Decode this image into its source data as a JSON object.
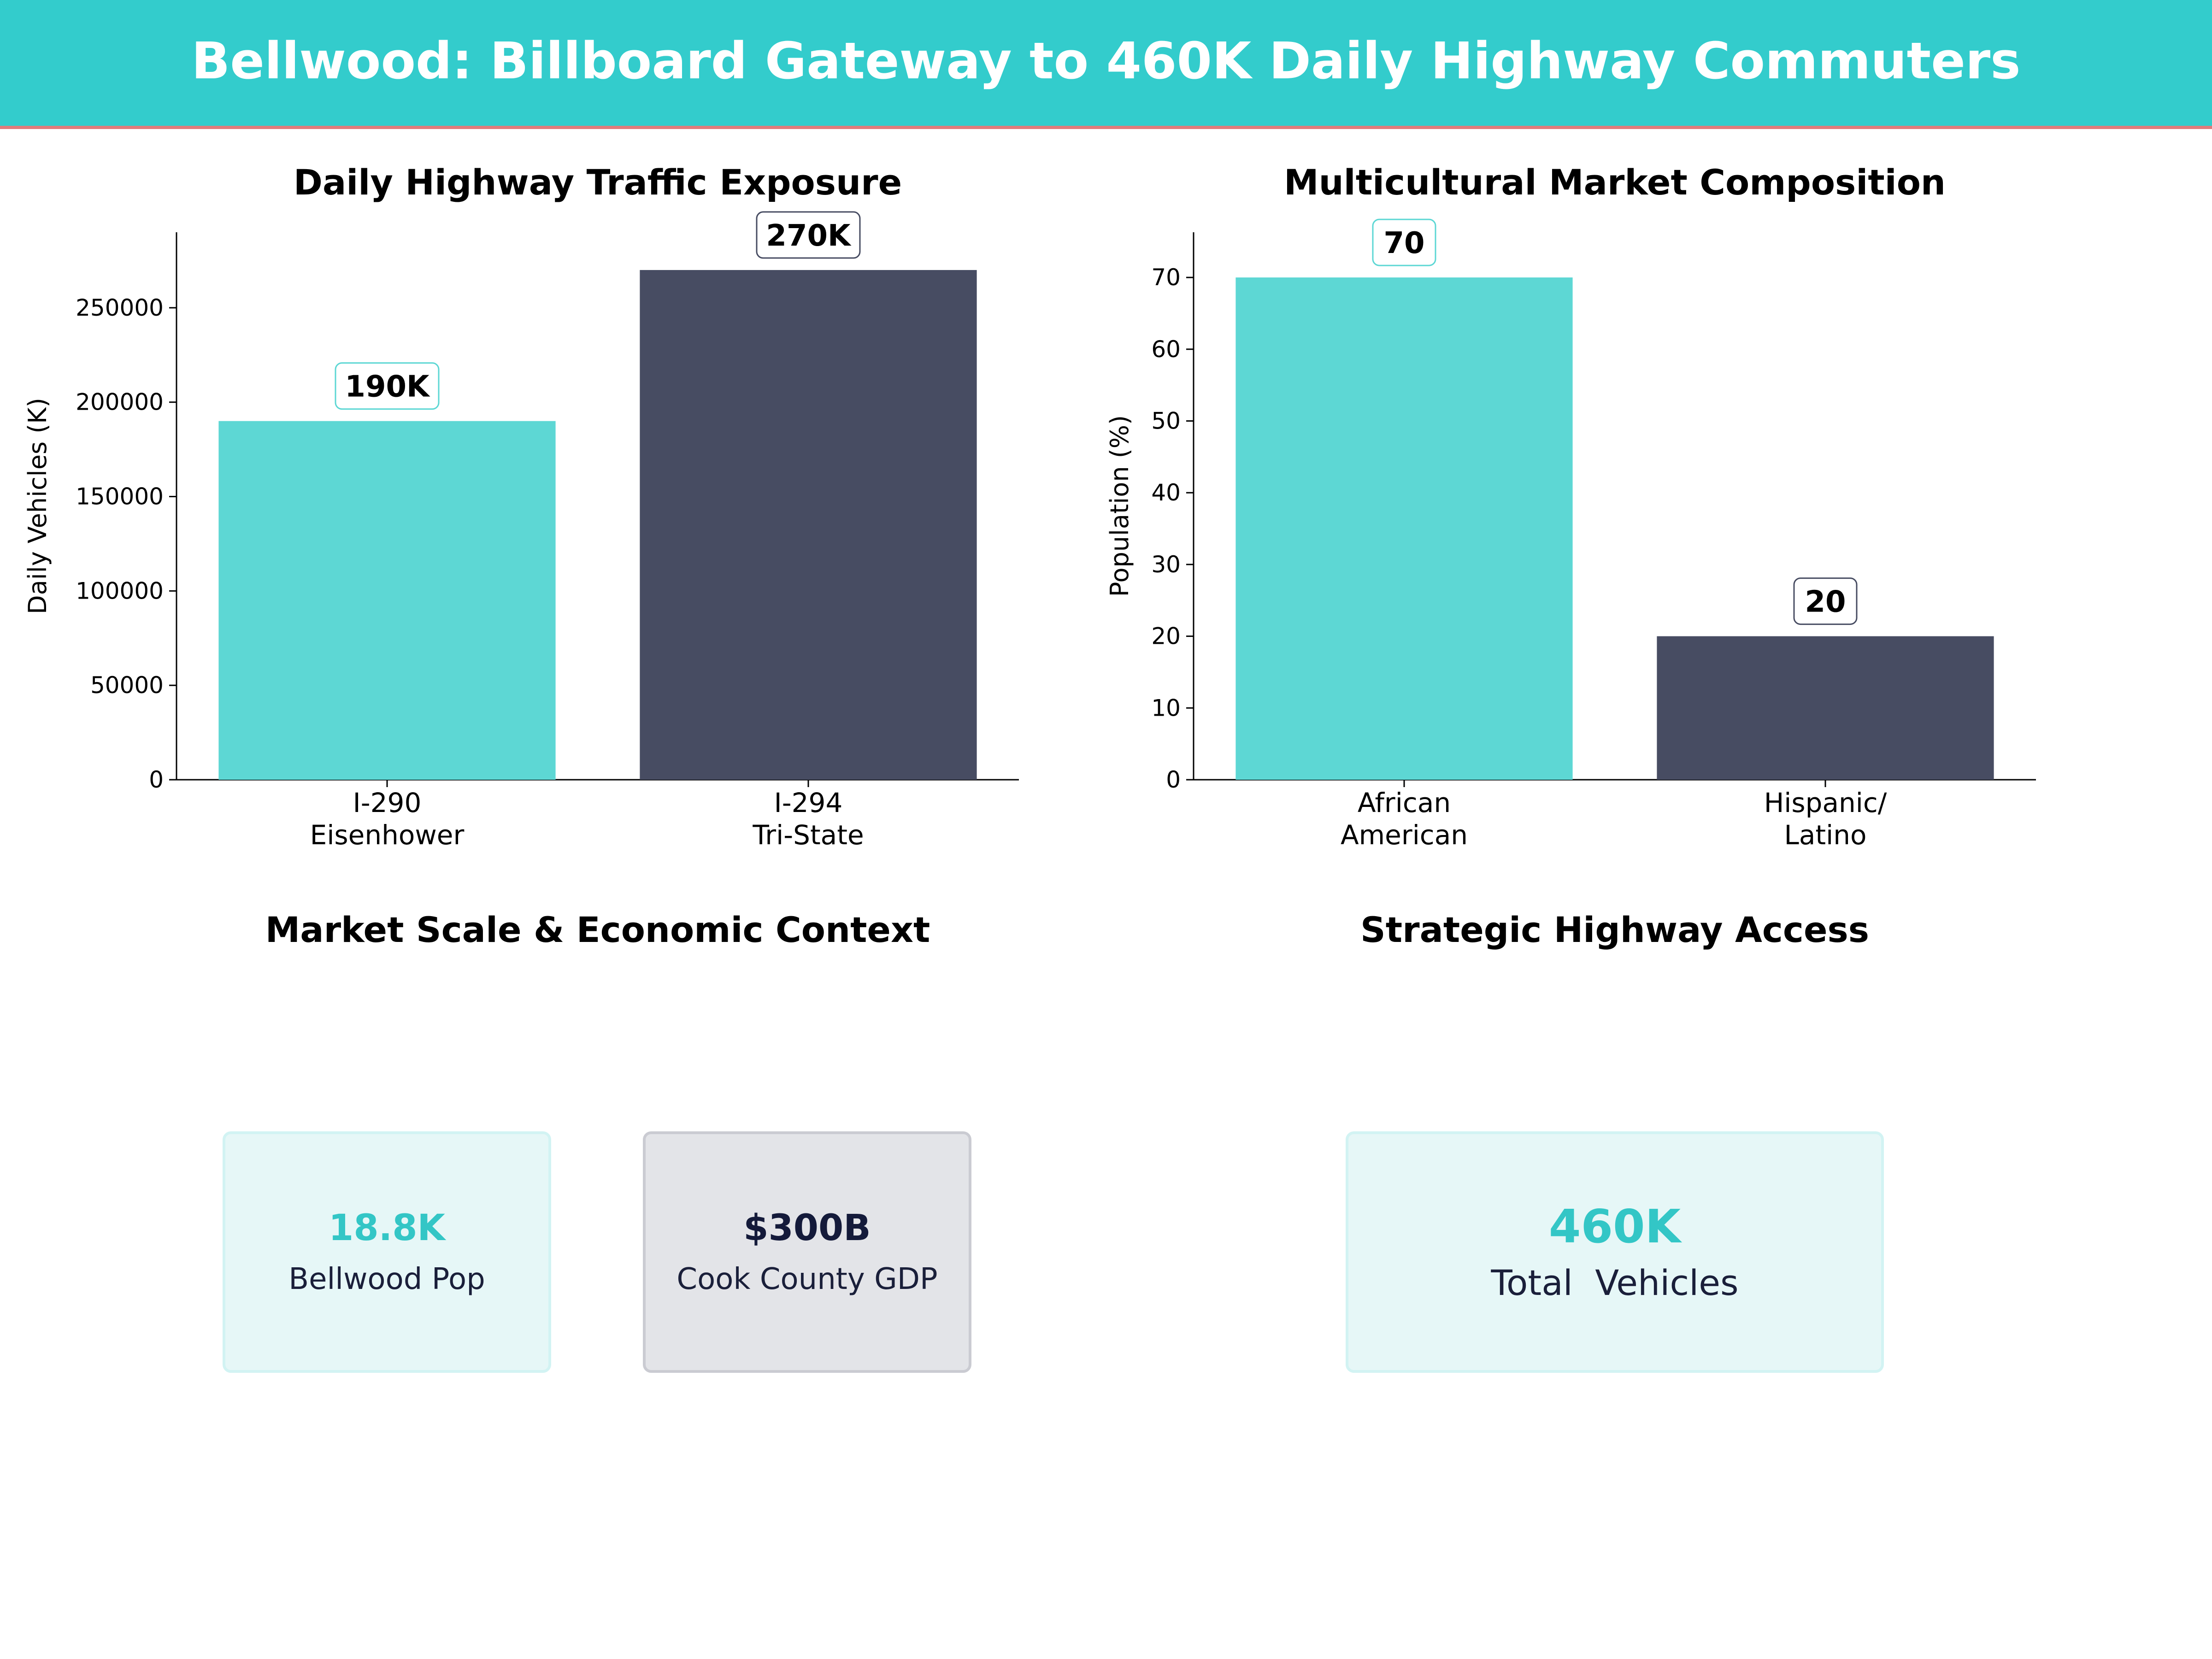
{
  "title": "Bellwood: Billboard Gateway to 460K Daily Highway Commuters",
  "colors": {
    "header_bg": "#33cccc",
    "header_rule": "#e07b7b",
    "teal": "#5dd7d4",
    "navy": "#474c62",
    "teal_text": "#33c6c6",
    "navy_text": "#141a3a"
  },
  "chart_data": [
    {
      "type": "bar",
      "title": "Daily Highway Traffic Exposure",
      "ylabel": "Daily Vehicles (K)",
      "categories": [
        [
          "I-290",
          "Eisenhower"
        ],
        [
          "I-294",
          "Tri-State"
        ]
      ],
      "values": [
        190000,
        270000
      ],
      "data_labels": [
        "190K",
        "270K"
      ],
      "ylim": [
        0,
        290000
      ],
      "yticks": [
        0,
        50000,
        100000,
        150000,
        200000,
        250000
      ],
      "bar_colors": [
        "#5dd7d4",
        "#474c62"
      ],
      "grid": false
    },
    {
      "type": "bar",
      "title": "Multicultural Market Composition",
      "ylabel": "Population (%)",
      "categories": [
        [
          "African",
          "American"
        ],
        [
          "Hispanic/",
          "Latino"
        ]
      ],
      "values": [
        70,
        20
      ],
      "data_labels": [
        "70",
        "20"
      ],
      "ylim": [
        0,
        76.3
      ],
      "yticks": [
        0,
        10,
        20,
        30,
        40,
        50,
        60,
        70
      ],
      "bar_colors": [
        "#5dd7d4",
        "#474c62"
      ],
      "grid": false
    }
  ],
  "market_panel": {
    "title": "Market Scale & Economic Context",
    "cards": [
      {
        "value": "18.8K",
        "label": "Bellwood Pop"
      },
      {
        "value": "$300B",
        "label": "Cook County GDP"
      }
    ]
  },
  "access_panel": {
    "title": "Strategic Highway Access",
    "card": {
      "value": "460K",
      "label": "Total  Vehicles"
    }
  }
}
